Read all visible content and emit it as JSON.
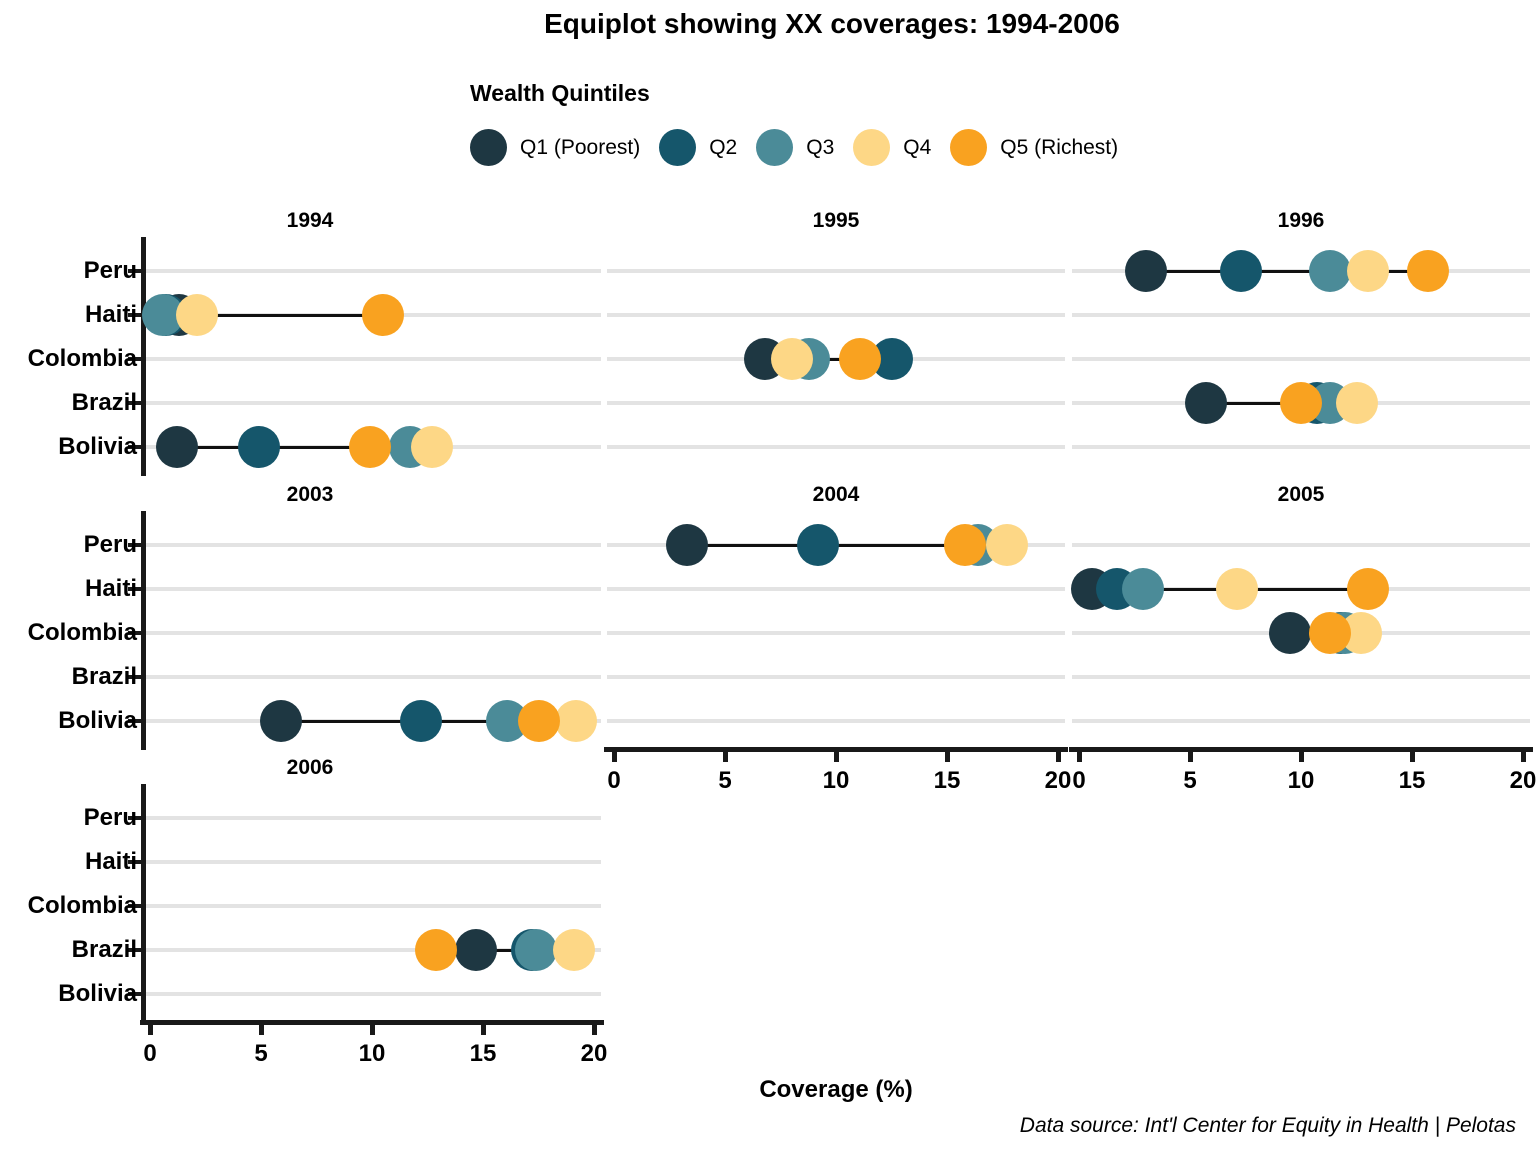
{
  "title": "Equiplot showing XX coverages: 1994-2006",
  "caption": "Data source: Int'l Center for Equity in Health | Pelotas",
  "legend": {
    "title": "Wealth Quintiles"
  },
  "chart_data": {
    "type": "scatter",
    "chart_kind": "equiplot (dot plot of coverage by wealth quintile, faceted by year)",
    "title": "Equiplot showing XX coverages: 1994-2006",
    "xlabel": "Coverage (%)",
    "xlim": [
      0,
      20
    ],
    "xticks": [
      0,
      5,
      10,
      15,
      20
    ],
    "grid": "horizontal country gridlines on",
    "legend_position": "top",
    "countries": [
      "Peru",
      "Haiti",
      "Colombia",
      "Brazil",
      "Bolivia"
    ],
    "series": [
      {
        "name": "Q1 (Poorest)",
        "color": "#1e3742"
      },
      {
        "name": "Q2",
        "color": "#15566b"
      },
      {
        "name": "Q3",
        "color": "#4b8b98"
      },
      {
        "name": "Q4",
        "color": "#fdd786"
      },
      {
        "name": "Q5 (Richest)",
        "color": "#f9a220"
      }
    ],
    "facets": [
      {
        "year": "1994",
        "row": 0,
        "col": 0,
        "x_axis": false
      },
      {
        "year": "1995",
        "row": 0,
        "col": 1,
        "x_axis": false
      },
      {
        "year": "1996",
        "row": 0,
        "col": 2,
        "x_axis": false
      },
      {
        "year": "2003",
        "row": 1,
        "col": 0,
        "x_axis": false
      },
      {
        "year": "2004",
        "row": 1,
        "col": 1,
        "x_axis": true
      },
      {
        "year": "2005",
        "row": 1,
        "col": 2,
        "x_axis": true
      },
      {
        "year": "2006",
        "row": 2,
        "col": 0,
        "x_axis": true
      }
    ],
    "values": {
      "1994": {
        "Haiti": [
          1.3,
          0.7,
          0.6,
          2.1,
          10.5
        ],
        "Bolivia": [
          1.2,
          4.9,
          11.7,
          12.7,
          9.9
        ]
      },
      "1995": {
        "Colombia": [
          6.8,
          12.5,
          8.8,
          8.0,
          11.1
        ]
      },
      "1996": {
        "Peru": [
          3.0,
          7.3,
          11.3,
          13.0,
          15.7
        ],
        "Brazil": [
          5.7,
          10.7,
          11.3,
          12.5,
          10.0
        ]
      },
      "2003": {
        "Bolivia": [
          5.9,
          12.2,
          16.1,
          19.2,
          17.5
        ]
      },
      "2004": {
        "Peru": [
          3.3,
          9.2,
          16.4,
          17.7,
          15.8
        ]
      },
      "2005": {
        "Haiti": [
          0.6,
          1.7,
          2.9,
          7.1,
          13.0
        ],
        "Colombia": [
          9.5,
          11.8,
          12.0,
          12.7,
          11.3
        ]
      },
      "2006": {
        "Brazil": [
          14.7,
          17.2,
          17.4,
          19.1,
          12.9
        ]
      }
    }
  }
}
